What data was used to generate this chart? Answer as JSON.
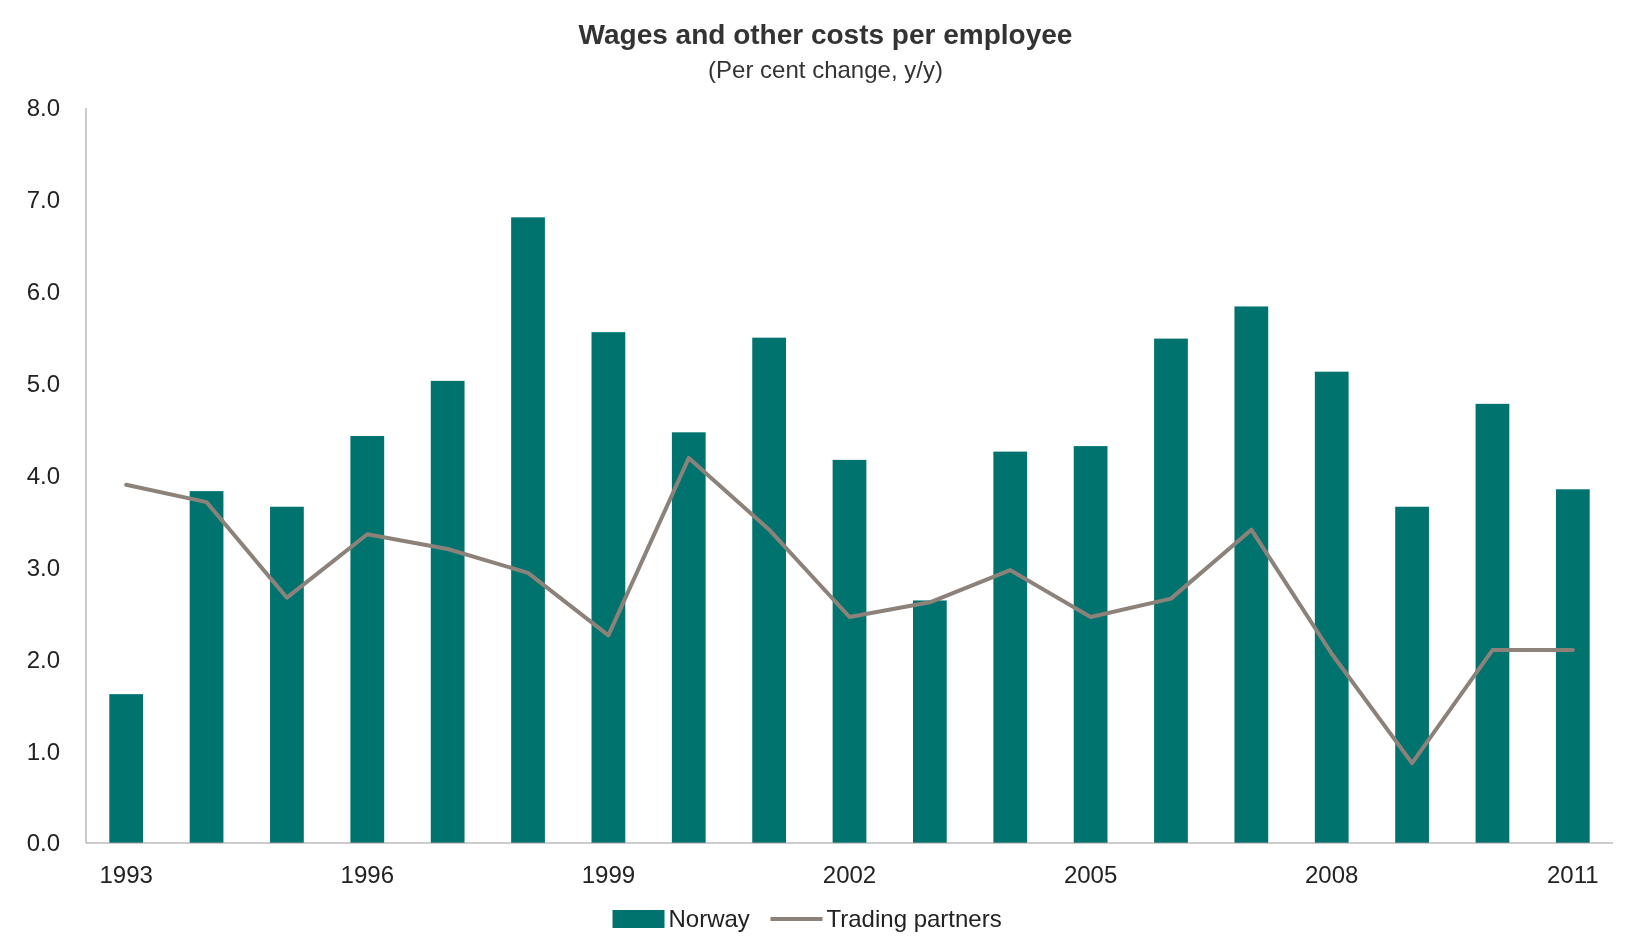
{
  "chart_data": {
    "type": "bar",
    "title": "Wages and other costs per employee",
    "subtitle": "(Per cent change, y/y)",
    "categories": [
      "1993",
      null,
      null,
      "1996",
      null,
      null,
      "1999",
      null,
      null,
      "2002",
      null,
      null,
      "2005",
      null,
      null,
      "2008",
      null,
      null,
      "2011"
    ],
    "series": [
      {
        "name": "Norway",
        "color": "#00736f",
        "values": [
          1.62,
          3.83,
          3.66,
          4.43,
          5.03,
          6.81,
          5.56,
          4.47,
          5.5,
          4.17,
          2.64,
          4.26,
          4.32,
          5.49,
          5.84,
          5.13,
          3.66,
          4.78,
          3.85
        ]
      },
      {
        "name": "Trading partners",
        "type": "line",
        "color": "#8c8279",
        "values": [
          3.9,
          3.71,
          2.67,
          3.36,
          3.2,
          2.94,
          2.26,
          4.19,
          3.41,
          2.46,
          2.62,
          2.97,
          2.46,
          2.66,
          3.41,
          2.06,
          0.87,
          2.1,
          2.1
        ]
      }
    ],
    "ylim": [
      0,
      8
    ],
    "yticks": [
      {
        "value": 0,
        "label": "0.0"
      },
      {
        "value": 1,
        "label": "1.0"
      },
      {
        "value": 2,
        "label": "2.0"
      },
      {
        "value": 3,
        "label": "3.0"
      },
      {
        "value": 4,
        "label": "4.0"
      },
      {
        "value": 5,
        "label": "5.0"
      },
      {
        "value": 6,
        "label": "6.0"
      },
      {
        "value": 7,
        "label": "7.0"
      },
      {
        "value": 8,
        "label": "8.0"
      }
    ],
    "legend": "bottom",
    "line_style": "solid",
    "marker": "none"
  }
}
